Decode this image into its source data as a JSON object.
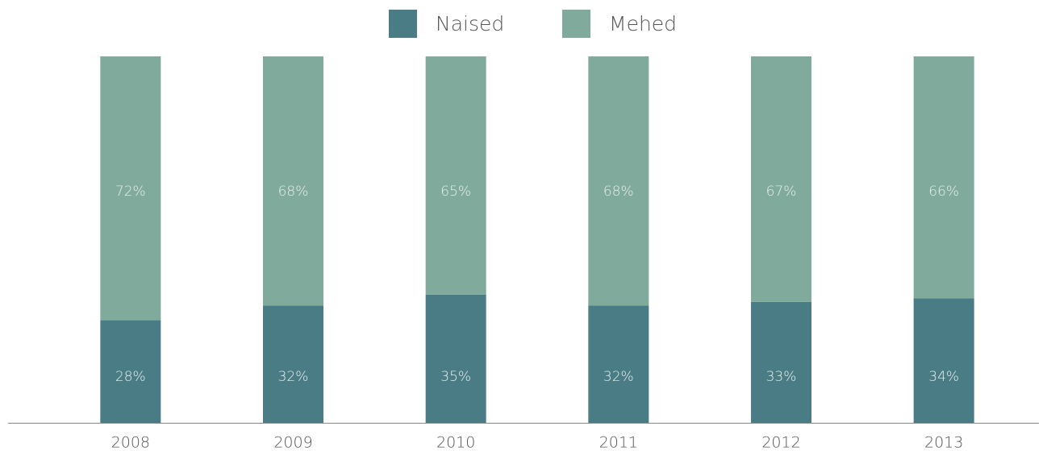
{
  "chart_data": {
    "type": "stacked-bar",
    "categories": [
      "2008",
      "2009",
      "2010",
      "2011",
      "2012",
      "2013"
    ],
    "series": [
      {
        "name": "Naised",
        "color": "#4a7c86",
        "values": [
          28,
          32,
          35,
          32,
          33,
          34
        ],
        "value_labels": [
          "28%",
          "32%",
          "35%",
          "32%",
          "33%",
          "34%"
        ]
      },
      {
        "name": "Mehed",
        "color": "#80ab9c",
        "values": [
          72,
          68,
          65,
          68,
          67,
          66
        ],
        "value_labels": [
          "72%",
          "68%",
          "65%",
          "68%",
          "67%",
          "66%"
        ]
      }
    ],
    "ylim": [
      0,
      100
    ],
    "legend": "top"
  }
}
